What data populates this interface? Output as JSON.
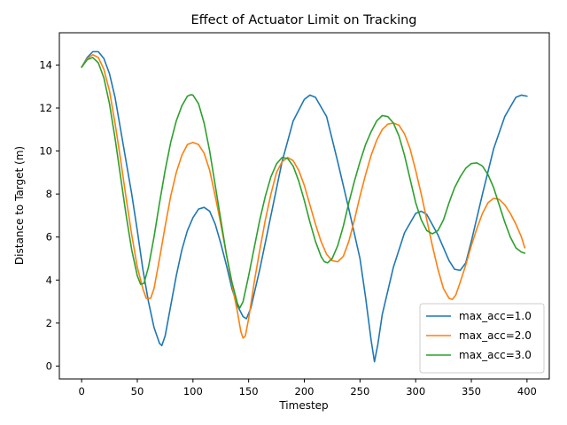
{
  "chart_data": {
    "type": "line",
    "title": "Effect of Actuator Limit on Tracking",
    "xlabel": "Timestep",
    "ylabel": "Distance to Target (m)",
    "xlim": [
      -20,
      420
    ],
    "ylim": [
      -0.6,
      15.5
    ],
    "xticks": [
      0,
      50,
      100,
      150,
      200,
      250,
      300,
      350,
      400
    ],
    "yticks": [
      0,
      2,
      4,
      6,
      8,
      10,
      12,
      14
    ],
    "grid": false,
    "legend_position": "lower-right",
    "series": [
      {
        "name": "max_acc=1.0",
        "color": "#1f77b4",
        "points": [
          [
            0,
            13.9
          ],
          [
            5,
            14.35
          ],
          [
            10,
            14.62
          ],
          [
            15,
            14.62
          ],
          [
            20,
            14.3
          ],
          [
            25,
            13.6
          ],
          [
            30,
            12.5
          ],
          [
            35,
            11.0
          ],
          [
            40,
            9.5
          ],
          [
            45,
            8.0
          ],
          [
            50,
            6.3
          ],
          [
            55,
            4.5
          ],
          [
            60,
            3.0
          ],
          [
            65,
            1.8
          ],
          [
            70,
            1.05
          ],
          [
            72,
            0.95
          ],
          [
            75,
            1.4
          ],
          [
            80,
            2.8
          ],
          [
            85,
            4.2
          ],
          [
            90,
            5.4
          ],
          [
            95,
            6.3
          ],
          [
            100,
            6.9
          ],
          [
            105,
            7.3
          ],
          [
            110,
            7.38
          ],
          [
            115,
            7.2
          ],
          [
            120,
            6.6
          ],
          [
            125,
            5.7
          ],
          [
            130,
            4.7
          ],
          [
            135,
            3.6
          ],
          [
            140,
            2.8
          ],
          [
            145,
            2.3
          ],
          [
            148,
            2.2
          ],
          [
            152,
            2.7
          ],
          [
            160,
            4.5
          ],
          [
            170,
            7.0
          ],
          [
            180,
            9.5
          ],
          [
            190,
            11.4
          ],
          [
            200,
            12.4
          ],
          [
            205,
            12.6
          ],
          [
            210,
            12.5
          ],
          [
            220,
            11.6
          ],
          [
            230,
            9.5
          ],
          [
            240,
            7.3
          ],
          [
            250,
            5.0
          ],
          [
            255,
            3.2
          ],
          [
            260,
            1.2
          ],
          [
            263,
            0.2
          ],
          [
            266,
            1.0
          ],
          [
            270,
            2.4
          ],
          [
            280,
            4.6
          ],
          [
            290,
            6.2
          ],
          [
            300,
            7.1
          ],
          [
            305,
            7.2
          ],
          [
            310,
            7.05
          ],
          [
            320,
            6.1
          ],
          [
            330,
            4.9
          ],
          [
            335,
            4.5
          ],
          [
            340,
            4.45
          ],
          [
            345,
            4.8
          ],
          [
            350,
            5.8
          ],
          [
            360,
            8.0
          ],
          [
            370,
            10.1
          ],
          [
            380,
            11.6
          ],
          [
            390,
            12.5
          ],
          [
            395,
            12.6
          ],
          [
            400,
            12.55
          ]
        ]
      },
      {
        "name": "max_acc=2.0",
        "color": "#ff7f0e",
        "points": [
          [
            0,
            13.9
          ],
          [
            5,
            14.3
          ],
          [
            10,
            14.48
          ],
          [
            15,
            14.35
          ],
          [
            20,
            13.8
          ],
          [
            25,
            12.8
          ],
          [
            30,
            11.3
          ],
          [
            35,
            9.6
          ],
          [
            40,
            7.8
          ],
          [
            45,
            6.1
          ],
          [
            50,
            4.6
          ],
          [
            55,
            3.6
          ],
          [
            58,
            3.15
          ],
          [
            62,
            3.15
          ],
          [
            65,
            3.6
          ],
          [
            70,
            5.0
          ],
          [
            75,
            6.5
          ],
          [
            80,
            7.9
          ],
          [
            85,
            9.0
          ],
          [
            90,
            9.8
          ],
          [
            95,
            10.3
          ],
          [
            100,
            10.4
          ],
          [
            105,
            10.3
          ],
          [
            110,
            9.9
          ],
          [
            115,
            9.1
          ],
          [
            120,
            7.9
          ],
          [
            125,
            6.6
          ],
          [
            130,
            5.2
          ],
          [
            135,
            3.8
          ],
          [
            140,
            2.5
          ],
          [
            143,
            1.6
          ],
          [
            145,
            1.3
          ],
          [
            147,
            1.4
          ],
          [
            150,
            2.2
          ],
          [
            155,
            3.9
          ],
          [
            160,
            5.4
          ],
          [
            165,
            6.8
          ],
          [
            170,
            8.0
          ],
          [
            175,
            9.0
          ],
          [
            180,
            9.5
          ],
          [
            185,
            9.7
          ],
          [
            190,
            9.55
          ],
          [
            195,
            9.1
          ],
          [
            200,
            8.4
          ],
          [
            205,
            7.5
          ],
          [
            210,
            6.6
          ],
          [
            215,
            5.8
          ],
          [
            220,
            5.2
          ],
          [
            225,
            4.9
          ],
          [
            230,
            4.85
          ],
          [
            235,
            5.1
          ],
          [
            240,
            5.8
          ],
          [
            245,
            6.8
          ],
          [
            250,
            7.9
          ],
          [
            255,
            8.9
          ],
          [
            260,
            9.8
          ],
          [
            265,
            10.5
          ],
          [
            270,
            11.0
          ],
          [
            275,
            11.25
          ],
          [
            280,
            11.3
          ],
          [
            285,
            11.2
          ],
          [
            290,
            10.8
          ],
          [
            295,
            10.1
          ],
          [
            300,
            9.1
          ],
          [
            305,
            8.0
          ],
          [
            310,
            6.8
          ],
          [
            315,
            5.6
          ],
          [
            320,
            4.5
          ],
          [
            325,
            3.6
          ],
          [
            330,
            3.15
          ],
          [
            333,
            3.1
          ],
          [
            336,
            3.3
          ],
          [
            340,
            3.9
          ],
          [
            345,
            4.7
          ],
          [
            350,
            5.6
          ],
          [
            355,
            6.4
          ],
          [
            360,
            7.1
          ],
          [
            365,
            7.6
          ],
          [
            370,
            7.8
          ],
          [
            375,
            7.75
          ],
          [
            380,
            7.5
          ],
          [
            385,
            7.1
          ],
          [
            390,
            6.6
          ],
          [
            395,
            6.0
          ],
          [
            398,
            5.5
          ]
        ]
      },
      {
        "name": "max_acc=3.0",
        "color": "#2ca02c",
        "points": [
          [
            0,
            13.9
          ],
          [
            5,
            14.25
          ],
          [
            10,
            14.35
          ],
          [
            15,
            14.1
          ],
          [
            20,
            13.4
          ],
          [
            25,
            12.2
          ],
          [
            30,
            10.6
          ],
          [
            35,
            8.8
          ],
          [
            40,
            7.0
          ],
          [
            45,
            5.4
          ],
          [
            50,
            4.2
          ],
          [
            53,
            3.8
          ],
          [
            56,
            3.85
          ],
          [
            60,
            4.6
          ],
          [
            65,
            6.0
          ],
          [
            70,
            7.6
          ],
          [
            75,
            9.1
          ],
          [
            80,
            10.4
          ],
          [
            85,
            11.4
          ],
          [
            90,
            12.1
          ],
          [
            95,
            12.55
          ],
          [
            98,
            12.62
          ],
          [
            100,
            12.6
          ],
          [
            105,
            12.2
          ],
          [
            110,
            11.3
          ],
          [
            115,
            10.0
          ],
          [
            120,
            8.4
          ],
          [
            125,
            6.8
          ],
          [
            130,
            5.2
          ],
          [
            135,
            3.9
          ],
          [
            140,
            2.9
          ],
          [
            142,
            2.7
          ],
          [
            145,
            3.0
          ],
          [
            150,
            4.2
          ],
          [
            155,
            5.5
          ],
          [
            160,
            6.8
          ],
          [
            165,
            7.9
          ],
          [
            170,
            8.8
          ],
          [
            175,
            9.4
          ],
          [
            180,
            9.7
          ],
          [
            185,
            9.65
          ],
          [
            190,
            9.3
          ],
          [
            195,
            8.6
          ],
          [
            200,
            7.7
          ],
          [
            205,
            6.7
          ],
          [
            210,
            5.8
          ],
          [
            215,
            5.1
          ],
          [
            218,
            4.85
          ],
          [
            221,
            4.8
          ],
          [
            225,
            5.0
          ],
          [
            230,
            5.6
          ],
          [
            235,
            6.5
          ],
          [
            240,
            7.6
          ],
          [
            245,
            8.6
          ],
          [
            250,
            9.5
          ],
          [
            255,
            10.3
          ],
          [
            260,
            10.9
          ],
          [
            265,
            11.4
          ],
          [
            270,
            11.65
          ],
          [
            275,
            11.6
          ],
          [
            280,
            11.3
          ],
          [
            285,
            10.7
          ],
          [
            290,
            9.8
          ],
          [
            295,
            8.7
          ],
          [
            300,
            7.6
          ],
          [
            305,
            6.8
          ],
          [
            310,
            6.3
          ],
          [
            315,
            6.15
          ],
          [
            320,
            6.3
          ],
          [
            325,
            6.8
          ],
          [
            330,
            7.6
          ],
          [
            335,
            8.3
          ],
          [
            340,
            8.8
          ],
          [
            345,
            9.2
          ],
          [
            350,
            9.42
          ],
          [
            355,
            9.45
          ],
          [
            360,
            9.3
          ],
          [
            365,
            8.9
          ],
          [
            370,
            8.3
          ],
          [
            375,
            7.5
          ],
          [
            380,
            6.7
          ],
          [
            385,
            6.0
          ],
          [
            390,
            5.5
          ],
          [
            395,
            5.3
          ],
          [
            398,
            5.25
          ]
        ]
      }
    ]
  }
}
